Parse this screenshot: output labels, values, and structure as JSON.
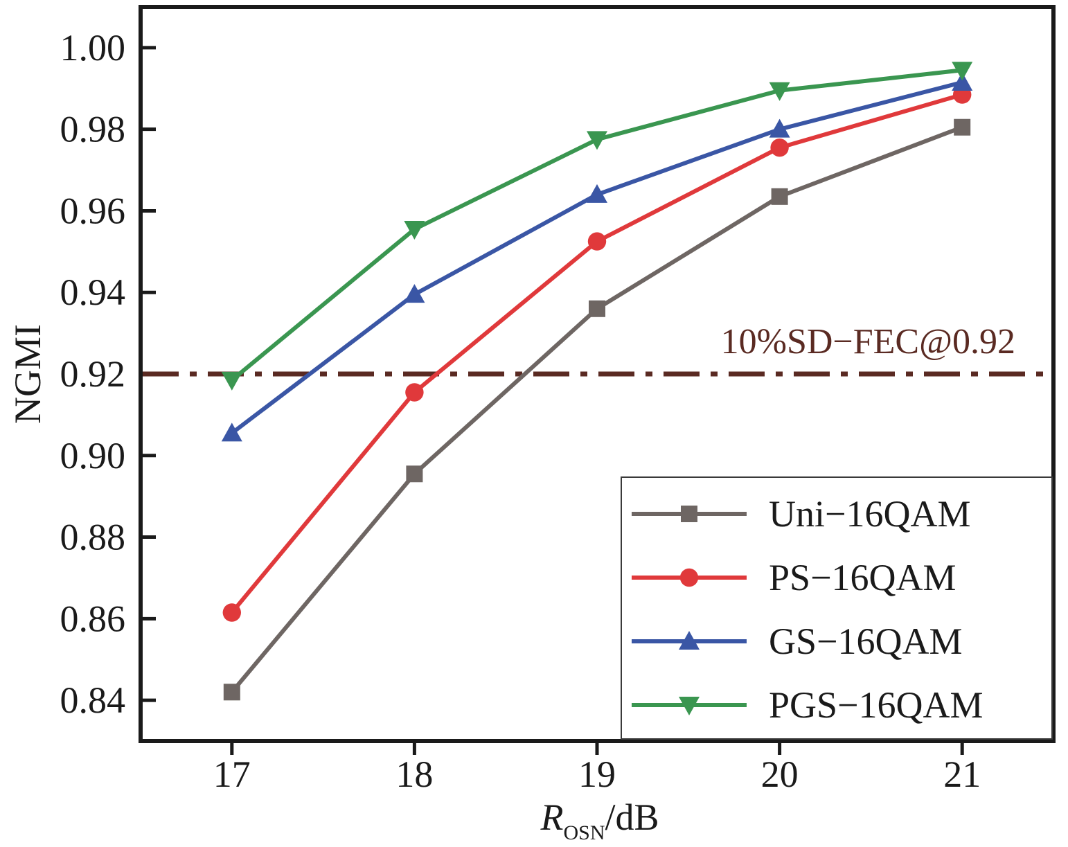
{
  "chart_data": {
    "type": "line",
    "x": [
      17,
      18,
      19,
      20,
      21
    ],
    "xlim": [
      16.5,
      21.5
    ],
    "ylim": [
      0.83,
      1.01
    ],
    "xticks": [
      "17",
      "18",
      "19",
      "20",
      "21"
    ],
    "yticks": [
      "0.84",
      "0.86",
      "0.88",
      "0.90",
      "0.92",
      "0.94",
      "0.96",
      "0.98",
      "1.00"
    ],
    "xlabel": {
      "main": "R",
      "sub": "OSN",
      "unit": "/dB"
    },
    "ylabel": "NGMI",
    "grid": false,
    "legend_position": "bottom-right",
    "series": [
      {
        "name": "Uni−16QAM",
        "values": [
          0.842,
          0.8955,
          0.936,
          0.9635,
          0.9805
        ],
        "color": "#6e6663",
        "marker": "square"
      },
      {
        "name": "PS−16QAM",
        "values": [
          0.8615,
          0.9155,
          0.9525,
          0.9755,
          0.9885
        ],
        "color": "#e0393b",
        "marker": "circle"
      },
      {
        "name": "GS−16QAM",
        "values": [
          0.9055,
          0.9395,
          0.964,
          0.98,
          0.9915
        ],
        "color": "#3a56a5",
        "marker": "triangle-up"
      },
      {
        "name": "PGS−16QAM",
        "values": [
          0.9185,
          0.9555,
          0.9775,
          0.9895,
          0.9945
        ],
        "color": "#3a9650",
        "marker": "triangle-down"
      }
    ],
    "threshold": {
      "value": 0.92,
      "label": "10%SD−FEC@0.92",
      "color": "#5a2a22",
      "style": "dash-dot"
    }
  }
}
